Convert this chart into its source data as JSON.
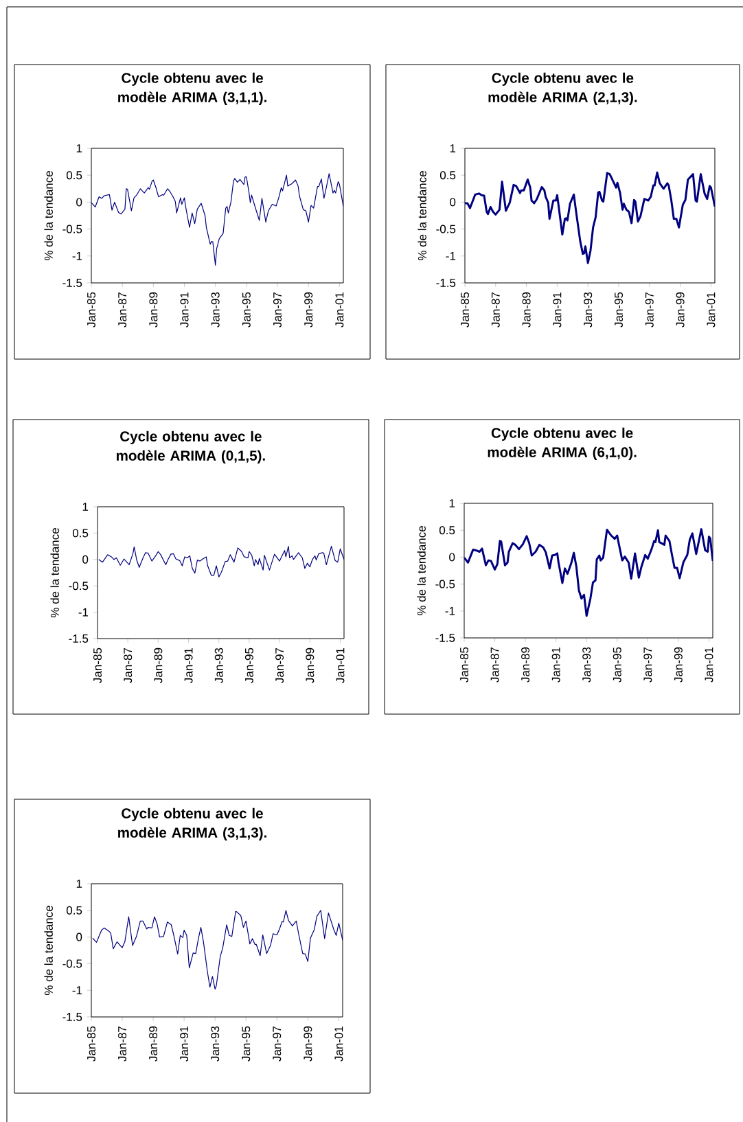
{
  "chart_data": [
    {
      "type": "line",
      "title": "Cycle obtenu avec le modèle ARIMA (3,1,1).",
      "ylabel": "% de la tendance",
      "color": "#000080",
      "x": [
        "1985-01",
        "1985-04",
        "1985-07",
        "1985-09",
        "1985-11",
        "1986-03",
        "1986-05",
        "1986-07",
        "1986-10",
        "1986-12",
        "1987-03",
        "1987-04",
        "1987-05",
        "1987-08",
        "1987-10",
        "1987-12",
        "1988-03",
        "1988-04",
        "1988-06",
        "1988-09",
        "1988-10",
        "1988-12",
        "1989-01",
        "1989-03",
        "1989-05",
        "1989-08",
        "1989-09",
        "1989-12",
        "1990-02",
        "1990-04",
        "1990-06",
        "1990-07",
        "1990-10",
        "1990-11",
        "1991-01",
        "1991-02",
        "1991-05",
        "1991-07",
        "1991-09",
        "1991-11",
        "1992-02",
        "1992-05",
        "1992-06",
        "1992-09",
        "1992-10",
        "1992-11",
        "1993-01",
        "1993-02",
        "1993-04",
        "1993-07",
        "1993-09",
        "1993-10",
        "1993-11",
        "1994-01",
        "1994-03",
        "1994-04",
        "1994-06",
        "1994-08",
        "1994-11",
        "1994-12",
        "1995-01",
        "1995-03",
        "1995-04",
        "1995-05",
        "1995-08",
        "1995-11",
        "1996-01",
        "1996-04",
        "1996-06",
        "1996-09",
        "1996-12",
        "1997-02",
        "1997-04",
        "1997-05",
        "1997-08",
        "1997-09",
        "1997-12",
        "1998-03",
        "1998-05",
        "1998-06",
        "1998-09",
        "1998-11",
        "1999-01",
        "1999-03",
        "1999-05",
        "1999-08",
        "1999-09",
        "1999-11",
        "2000-01",
        "2000-03",
        "2000-05",
        "2000-08",
        "2000-09",
        "2000-10",
        "2000-12",
        "2001-01",
        "2001-04"
      ],
      "values": [
        -0.01,
        -0.09,
        0.1,
        0.07,
        0.12,
        0.14,
        -0.15,
        0.0,
        -0.19,
        -0.22,
        -0.13,
        0.25,
        0.24,
        -0.16,
        0.08,
        0.13,
        0.25,
        0.22,
        0.17,
        0.27,
        0.24,
        0.39,
        0.41,
        0.27,
        0.1,
        0.14,
        0.13,
        0.25,
        0.19,
        0.11,
        0.01,
        -0.2,
        0.08,
        -0.04,
        0.08,
        -0.09,
        -0.47,
        -0.2,
        -0.4,
        -0.13,
        -0.02,
        -0.25,
        -0.47,
        -0.78,
        -0.73,
        -0.74,
        -1.17,
        -0.86,
        -0.68,
        -0.58,
        -0.11,
        -0.08,
        -0.2,
        0.0,
        0.39,
        0.44,
        0.37,
        0.42,
        0.33,
        0.47,
        0.47,
        0.18,
        -0.01,
        0.13,
        -0.11,
        -0.34,
        0.07,
        -0.37,
        -0.16,
        -0.04,
        -0.07,
        0.08,
        0.27,
        0.21,
        0.5,
        0.3,
        0.34,
        0.41,
        0.3,
        0.12,
        -0.14,
        -0.16,
        -0.37,
        -0.06,
        -0.11,
        0.29,
        0.29,
        0.43,
        0.07,
        0.29,
        0.53,
        0.17,
        0.22,
        0.17,
        0.38,
        0.33,
        -0.08
      ],
      "xlim": [
        "1985-01",
        "2001-04"
      ],
      "xticks": [
        {
          "value": "1985-01",
          "label": "Jan-85"
        },
        {
          "value": "1987-01",
          "label": "Jan-87"
        },
        {
          "value": "1989-01",
          "label": "Jan-89"
        },
        {
          "value": "1991-01",
          "label": "Jan-91"
        },
        {
          "value": "1993-01",
          "label": "Jan-93"
        },
        {
          "value": "1995-01",
          "label": "Jan-95"
        },
        {
          "value": "1997-01",
          "label": "Jan-97"
        },
        {
          "value": "1999-01",
          "label": "Jan-99"
        },
        {
          "value": "2001-01",
          "label": "Jan-01"
        }
      ],
      "ylim": [
        -1.5,
        1
      ],
      "yticks": [
        -1.5,
        -1,
        -0.5,
        0,
        0.5,
        1
      ]
    },
    {
      "type": "line",
      "title": "Cycle obtenu avec le modèle ARIMA (2,1,3).",
      "ylabel": "% de la tendance",
      "color": "#000080",
      "x": [
        "1985-01",
        "1985-03",
        "1985-05",
        "1985-09",
        "1985-12",
        "1986-02",
        "1986-04",
        "1986-06",
        "1986-07",
        "1986-09",
        "1986-11",
        "1987-01",
        "1987-04",
        "1987-06",
        "1987-09",
        "1987-12",
        "1988-03",
        "1988-05",
        "1988-08",
        "1988-09",
        "1988-11",
        "1989-02",
        "1989-04",
        "1989-05",
        "1989-07",
        "1989-09",
        "1990-01",
        "1990-03",
        "1990-04",
        "1990-06",
        "1990-07",
        "1990-10",
        "1990-12",
        "1991-01",
        "1991-02",
        "1991-05",
        "1991-07",
        "1991-08",
        "1991-09",
        "1991-11",
        "1992-02",
        "1992-04",
        "1992-07",
        "1992-09",
        "1992-10",
        "1992-11",
        "1993-01",
        "1993-03",
        "1993-05",
        "1993-07",
        "1993-09",
        "1993-10",
        "1993-12",
        "1994-01",
        "1994-04",
        "1994-06",
        "1994-09",
        "1994-11",
        "1994-12",
        "1995-02",
        "1995-04",
        "1995-05",
        "1995-07",
        "1995-09",
        "1995-11",
        "1996-01",
        "1996-02",
        "1996-04",
        "1996-06",
        "1996-09",
        "1996-12",
        "1997-02",
        "1997-04",
        "1997-05",
        "1997-07",
        "1997-09",
        "1997-12",
        "1998-03",
        "1998-04",
        "1998-06",
        "1998-08",
        "1998-10",
        "1998-12",
        "1999-03",
        "1999-05",
        "1999-07",
        "1999-11",
        "2000-01",
        "2000-02",
        "2000-05",
        "2000-08",
        "2000-10",
        "2000-12",
        "2001-01",
        "2001-04"
      ],
      "values": [
        -0.02,
        -0.02,
        -0.11,
        0.14,
        0.16,
        0.13,
        0.12,
        -0.18,
        -0.22,
        -0.09,
        -0.18,
        -0.23,
        -0.14,
        0.38,
        -0.16,
        -0.01,
        0.32,
        0.3,
        0.17,
        0.22,
        0.22,
        0.42,
        0.27,
        0.03,
        -0.02,
        0.05,
        0.28,
        0.22,
        0.1,
        -0.01,
        -0.31,
        0.03,
        0.03,
        0.13,
        -0.05,
        -0.6,
        -0.31,
        -0.3,
        -0.34,
        -0.03,
        0.14,
        -0.22,
        -0.73,
        -0.96,
        -0.95,
        -0.82,
        -1.13,
        -0.9,
        -0.47,
        -0.28,
        0.18,
        0.19,
        0.03,
        0.01,
        0.54,
        0.52,
        0.37,
        0.27,
        0.36,
        0.18,
        -0.14,
        -0.03,
        -0.14,
        -0.18,
        -0.39,
        0.04,
        0.01,
        -0.36,
        -0.26,
        0.06,
        0.03,
        0.1,
        0.31,
        0.31,
        0.55,
        0.35,
        0.25,
        0.35,
        0.31,
        0.04,
        -0.31,
        -0.31,
        -0.47,
        -0.05,
        0.04,
        0.42,
        0.52,
        0.03,
        0.01,
        0.52,
        0.16,
        0.06,
        0.3,
        0.27,
        -0.08
      ],
      "xlim": [
        "1985-01",
        "2001-04"
      ],
      "xticks": [
        {
          "value": "1985-01",
          "label": "Jan-85"
        },
        {
          "value": "1987-01",
          "label": "Jan-87"
        },
        {
          "value": "1989-01",
          "label": "Jan-89"
        },
        {
          "value": "1991-01",
          "label": "Jan-91"
        },
        {
          "value": "1993-01",
          "label": "Jan-93"
        },
        {
          "value": "1995-01",
          "label": "Jan-95"
        },
        {
          "value": "1997-01",
          "label": "Jan-97"
        },
        {
          "value": "1999-01",
          "label": "Jan-99"
        },
        {
          "value": "2001-01",
          "label": "Jan-01"
        }
      ],
      "ylim": [
        -1.5,
        1
      ],
      "yticks": [
        -1.5,
        -1,
        -0.5,
        0,
        0.5,
        1
      ]
    },
    {
      "type": "line",
      "title": "Cycle obtenu avec le modèle ARIMA (0,1,5).",
      "ylabel": "% de la tendance",
      "color": "#000080",
      "x": [
        "1985-02",
        "1985-05",
        "1985-09",
        "1985-12",
        "1986-02",
        "1986-04",
        "1986-07",
        "1986-10",
        "1987-02",
        "1987-05",
        "1987-06",
        "1987-08",
        "1987-10",
        "1988-01",
        "1988-03",
        "1988-05",
        "1988-08",
        "1988-11",
        "1989-01",
        "1989-03",
        "1989-07",
        "1989-09",
        "1989-11",
        "1990-01",
        "1990-03",
        "1990-06",
        "1990-08",
        "1990-10",
        "1990-12",
        "1991-02",
        "1991-04",
        "1991-06",
        "1991-08",
        "1991-10",
        "1992-01",
        "1992-03",
        "1992-04",
        "1992-07",
        "1992-09",
        "1992-11",
        "1993-01",
        "1993-03",
        "1993-06",
        "1993-08",
        "1993-10",
        "1994-01",
        "1994-04",
        "1994-07",
        "1994-09",
        "1994-12",
        "1995-01",
        "1995-03",
        "1995-05",
        "1995-06",
        "1995-08",
        "1995-09",
        "1995-12",
        "1996-01",
        "1996-05",
        "1996-09",
        "1997-01",
        "1997-05",
        "1997-06",
        "1997-08",
        "1997-09",
        "1997-11",
        "1997-12",
        "1998-04",
        "1998-07",
        "1998-09",
        "1998-11",
        "1999-01",
        "1999-03",
        "1999-05",
        "1999-06",
        "1999-08",
        "1999-11",
        "1999-12",
        "2000-02",
        "2000-06",
        "2000-09",
        "2000-11",
        "2001-01",
        "2001-04"
      ],
      "values": [
        0.0,
        -0.05,
        0.09,
        0.05,
        0.0,
        0.03,
        -0.11,
        0.01,
        -0.1,
        0.11,
        0.24,
        -0.01,
        -0.15,
        0.03,
        0.13,
        0.12,
        -0.03,
        0.07,
        0.15,
        0.09,
        -0.1,
        0.01,
        0.1,
        0.11,
        0.01,
        -0.02,
        -0.12,
        0.05,
        0.03,
        0.07,
        -0.17,
        -0.26,
        -0.01,
        -0.03,
        0.02,
        0.05,
        -0.11,
        -0.3,
        -0.3,
        -0.12,
        -0.33,
        -0.24,
        -0.04,
        -0.03,
        0.09,
        -0.05,
        0.22,
        0.15,
        0.05,
        0.03,
        0.15,
        0.08,
        -0.12,
        0.0,
        -0.1,
        0.02,
        -0.2,
        0.08,
        -0.2,
        0.1,
        -0.03,
        0.17,
        0.05,
        0.25,
        0.03,
        0.07,
        0.0,
        0.13,
        0.03,
        -0.17,
        -0.07,
        -0.14,
        0.0,
        0.07,
        -0.01,
        0.11,
        0.13,
        0.12,
        -0.1,
        0.25,
        -0.02,
        -0.05,
        0.2,
        0.0
      ],
      "xlim": [
        "1985-01",
        "2001-04"
      ],
      "xticks": [
        {
          "value": "1985-01",
          "label": "Jan-85"
        },
        {
          "value": "1987-01",
          "label": "Jan-87"
        },
        {
          "value": "1989-01",
          "label": "Jan-89"
        },
        {
          "value": "1991-01",
          "label": "Jan-91"
        },
        {
          "value": "1993-01",
          "label": "Jan-93"
        },
        {
          "value": "1995-01",
          "label": "Jan-95"
        },
        {
          "value": "1997-01",
          "label": "Jan-97"
        },
        {
          "value": "1999-01",
          "label": "Jan-99"
        },
        {
          "value": "2001-01",
          "label": "Jan-01"
        }
      ],
      "ylim": [
        -1.5,
        1
      ],
      "yticks": [
        -1.5,
        -1,
        -0.5,
        0,
        0.5,
        1
      ]
    },
    {
      "type": "line",
      "title": "Cycle obtenu avec le modèle ARIMA (6,1,0).",
      "ylabel": "% de la tendance",
      "color": "#000080",
      "x": [
        "1985-01",
        "1985-04",
        "1985-08",
        "1985-11",
        "1986-01",
        "1986-03",
        "1986-06",
        "1986-08",
        "1986-10",
        "1987-01",
        "1987-03",
        "1987-05",
        "1987-06",
        "1987-09",
        "1987-11",
        "1987-12",
        "1988-03",
        "1988-05",
        "1988-08",
        "1988-11",
        "1989-02",
        "1989-04",
        "1989-06",
        "1989-09",
        "1989-12",
        "1990-03",
        "1990-05",
        "1990-08",
        "1990-10",
        "1990-12",
        "1991-02",
        "1991-03",
        "1991-06",
        "1991-08",
        "1991-10",
        "1992-01",
        "1992-03",
        "1992-05",
        "1992-07",
        "1992-09",
        "1992-11",
        "1993-01",
        "1993-04",
        "1993-06",
        "1993-08",
        "1993-09",
        "1993-11",
        "1993-12",
        "1994-02",
        "1994-05",
        "1994-08",
        "1994-11",
        "1995-01",
        "1995-02",
        "1995-05",
        "1995-07",
        "1995-10",
        "1995-12",
        "1996-03",
        "1996-06",
        "1996-08",
        "1996-11",
        "1997-01",
        "1997-04",
        "1997-06",
        "1997-07",
        "1997-09",
        "1997-10",
        "1998-02",
        "1998-03",
        "1998-06",
        "1998-08",
        "1998-10",
        "1998-12",
        "1999-02",
        "1999-05",
        "1999-08",
        "1999-10",
        "1999-12",
        "2000-03",
        "2000-07",
        "2000-10",
        "2000-12",
        "2001-01",
        "2001-02",
        "2001-04"
      ],
      "values": [
        -0.01,
        -0.1,
        0.14,
        0.12,
        0.1,
        0.16,
        -0.15,
        -0.06,
        -0.07,
        -0.23,
        -0.13,
        0.3,
        0.29,
        -0.15,
        -0.1,
        0.1,
        0.26,
        0.23,
        0.15,
        0.24,
        0.39,
        0.26,
        0.03,
        0.1,
        0.23,
        0.18,
        0.09,
        -0.21,
        0.03,
        0.04,
        0.07,
        -0.1,
        -0.48,
        -0.21,
        -0.31,
        -0.11,
        0.08,
        -0.18,
        -0.62,
        -0.77,
        -0.7,
        -1.09,
        -0.77,
        -0.47,
        -0.43,
        -0.04,
        0.03,
        -0.06,
        -0.01,
        0.51,
        0.41,
        0.34,
        0.4,
        0.28,
        -0.06,
        0.01,
        -0.1,
        -0.4,
        0.07,
        -0.38,
        -0.18,
        0.04,
        -0.03,
        0.15,
        0.3,
        0.28,
        0.5,
        0.28,
        0.23,
        0.4,
        0.3,
        0.04,
        -0.2,
        -0.2,
        -0.39,
        -0.09,
        0.04,
        0.33,
        0.44,
        0.06,
        0.52,
        0.13,
        0.1,
        0.38,
        0.35,
        -0.07
      ],
      "xlim": [
        "1985-01",
        "2001-04"
      ],
      "xticks": [
        {
          "value": "1985-01",
          "label": "Jan-85"
        },
        {
          "value": "1987-01",
          "label": "Jan-87"
        },
        {
          "value": "1989-01",
          "label": "Jan-89"
        },
        {
          "value": "1991-01",
          "label": "Jan-91"
        },
        {
          "value": "1993-01",
          "label": "Jan-93"
        },
        {
          "value": "1995-01",
          "label": "Jan-95"
        },
        {
          "value": "1997-01",
          "label": "Jan-97"
        },
        {
          "value": "1999-01",
          "label": "Jan-99"
        },
        {
          "value": "2001-01",
          "label": "Jan-01"
        }
      ],
      "ylim": [
        -1.5,
        1
      ],
      "yticks": [
        -1.5,
        -1,
        -0.5,
        0,
        0.5,
        1
      ]
    },
    {
      "type": "line",
      "title": "Cycle obtenu avec le modèle ARIMA (3,1,3).",
      "ylabel": "% de la tendance",
      "color": "#000080",
      "x": [
        "1985-02",
        "1985-05",
        "1985-09",
        "1985-11",
        "1986-02",
        "1986-04",
        "1986-06",
        "1986-09",
        "1986-11",
        "1987-01",
        "1987-03",
        "1987-06",
        "1987-09",
        "1987-12",
        "1988-03",
        "1988-05",
        "1988-08",
        "1988-09",
        "1988-12",
        "1989-02",
        "1989-04",
        "1989-06",
        "1989-09",
        "1989-12",
        "1990-03",
        "1990-05",
        "1990-08",
        "1990-10",
        "1990-12",
        "1991-01",
        "1991-03",
        "1991-05",
        "1991-08",
        "1991-10",
        "1991-12",
        "1992-02",
        "1992-04",
        "1992-07",
        "1992-09",
        "1992-11",
        "1993-01",
        "1993-02",
        "1993-05",
        "1993-07",
        "1993-10",
        "1993-12",
        "1994-02",
        "1994-05",
        "1994-06",
        "1994-09",
        "1994-11",
        "1995-01",
        "1995-04",
        "1995-06",
        "1995-08",
        "1995-09",
        "1995-12",
        "1996-02",
        "1996-05",
        "1996-08",
        "1996-10",
        "1997-01",
        "1997-03",
        "1997-05",
        "1997-06",
        "1997-08",
        "1997-10",
        "1998-01",
        "1998-04",
        "1998-06",
        "1998-09",
        "1998-11",
        "1999-01",
        "1999-03",
        "1999-06",
        "1999-08",
        "1999-11",
        "2000-02",
        "2000-05",
        "2000-09",
        "2000-11",
        "2001-01",
        "2001-04"
      ],
      "values": [
        -0.02,
        -0.1,
        0.13,
        0.17,
        0.12,
        0.08,
        -0.22,
        -0.09,
        -0.15,
        -0.2,
        -0.09,
        0.38,
        -0.16,
        0.01,
        0.3,
        0.3,
        0.15,
        0.18,
        0.17,
        0.38,
        0.25,
        0.0,
        0.01,
        0.28,
        0.23,
        0.03,
        -0.32,
        0.03,
        -0.01,
        0.13,
        0.03,
        -0.58,
        -0.3,
        -0.31,
        -0.04,
        0.18,
        -0.09,
        -0.64,
        -0.94,
        -0.74,
        -0.98,
        -0.91,
        -0.37,
        -0.2,
        0.23,
        0.03,
        0.01,
        0.48,
        0.47,
        0.4,
        0.18,
        0.3,
        -0.13,
        -0.03,
        -0.14,
        -0.14,
        -0.35,
        0.04,
        -0.31,
        -0.16,
        0.06,
        0.04,
        0.15,
        0.29,
        0.28,
        0.5,
        0.31,
        0.21,
        0.3,
        0.04,
        -0.31,
        -0.32,
        -0.46,
        -0.02,
        0.14,
        0.39,
        0.5,
        -0.03,
        0.45,
        0.15,
        0.03,
        0.26,
        -0.06
      ],
      "xlim": [
        "1985-01",
        "2001-04"
      ],
      "xticks": [
        {
          "value": "1985-01",
          "label": "Jan-85"
        },
        {
          "value": "1987-01",
          "label": "Jan-87"
        },
        {
          "value": "1989-01",
          "label": "Jan-89"
        },
        {
          "value": "1991-01",
          "label": "Jan-91"
        },
        {
          "value": "1993-01",
          "label": "Jan-93"
        },
        {
          "value": "1995-01",
          "label": "Jan-95"
        },
        {
          "value": "1997-01",
          "label": "Jan-97"
        },
        {
          "value": "1999-01",
          "label": "Jan-99"
        },
        {
          "value": "2001-01",
          "label": "Jan-01"
        }
      ],
      "ylim": [
        -1.5,
        1
      ],
      "yticks": [
        -1.5,
        -1,
        -0.5,
        0,
        0.5,
        1
      ]
    }
  ]
}
